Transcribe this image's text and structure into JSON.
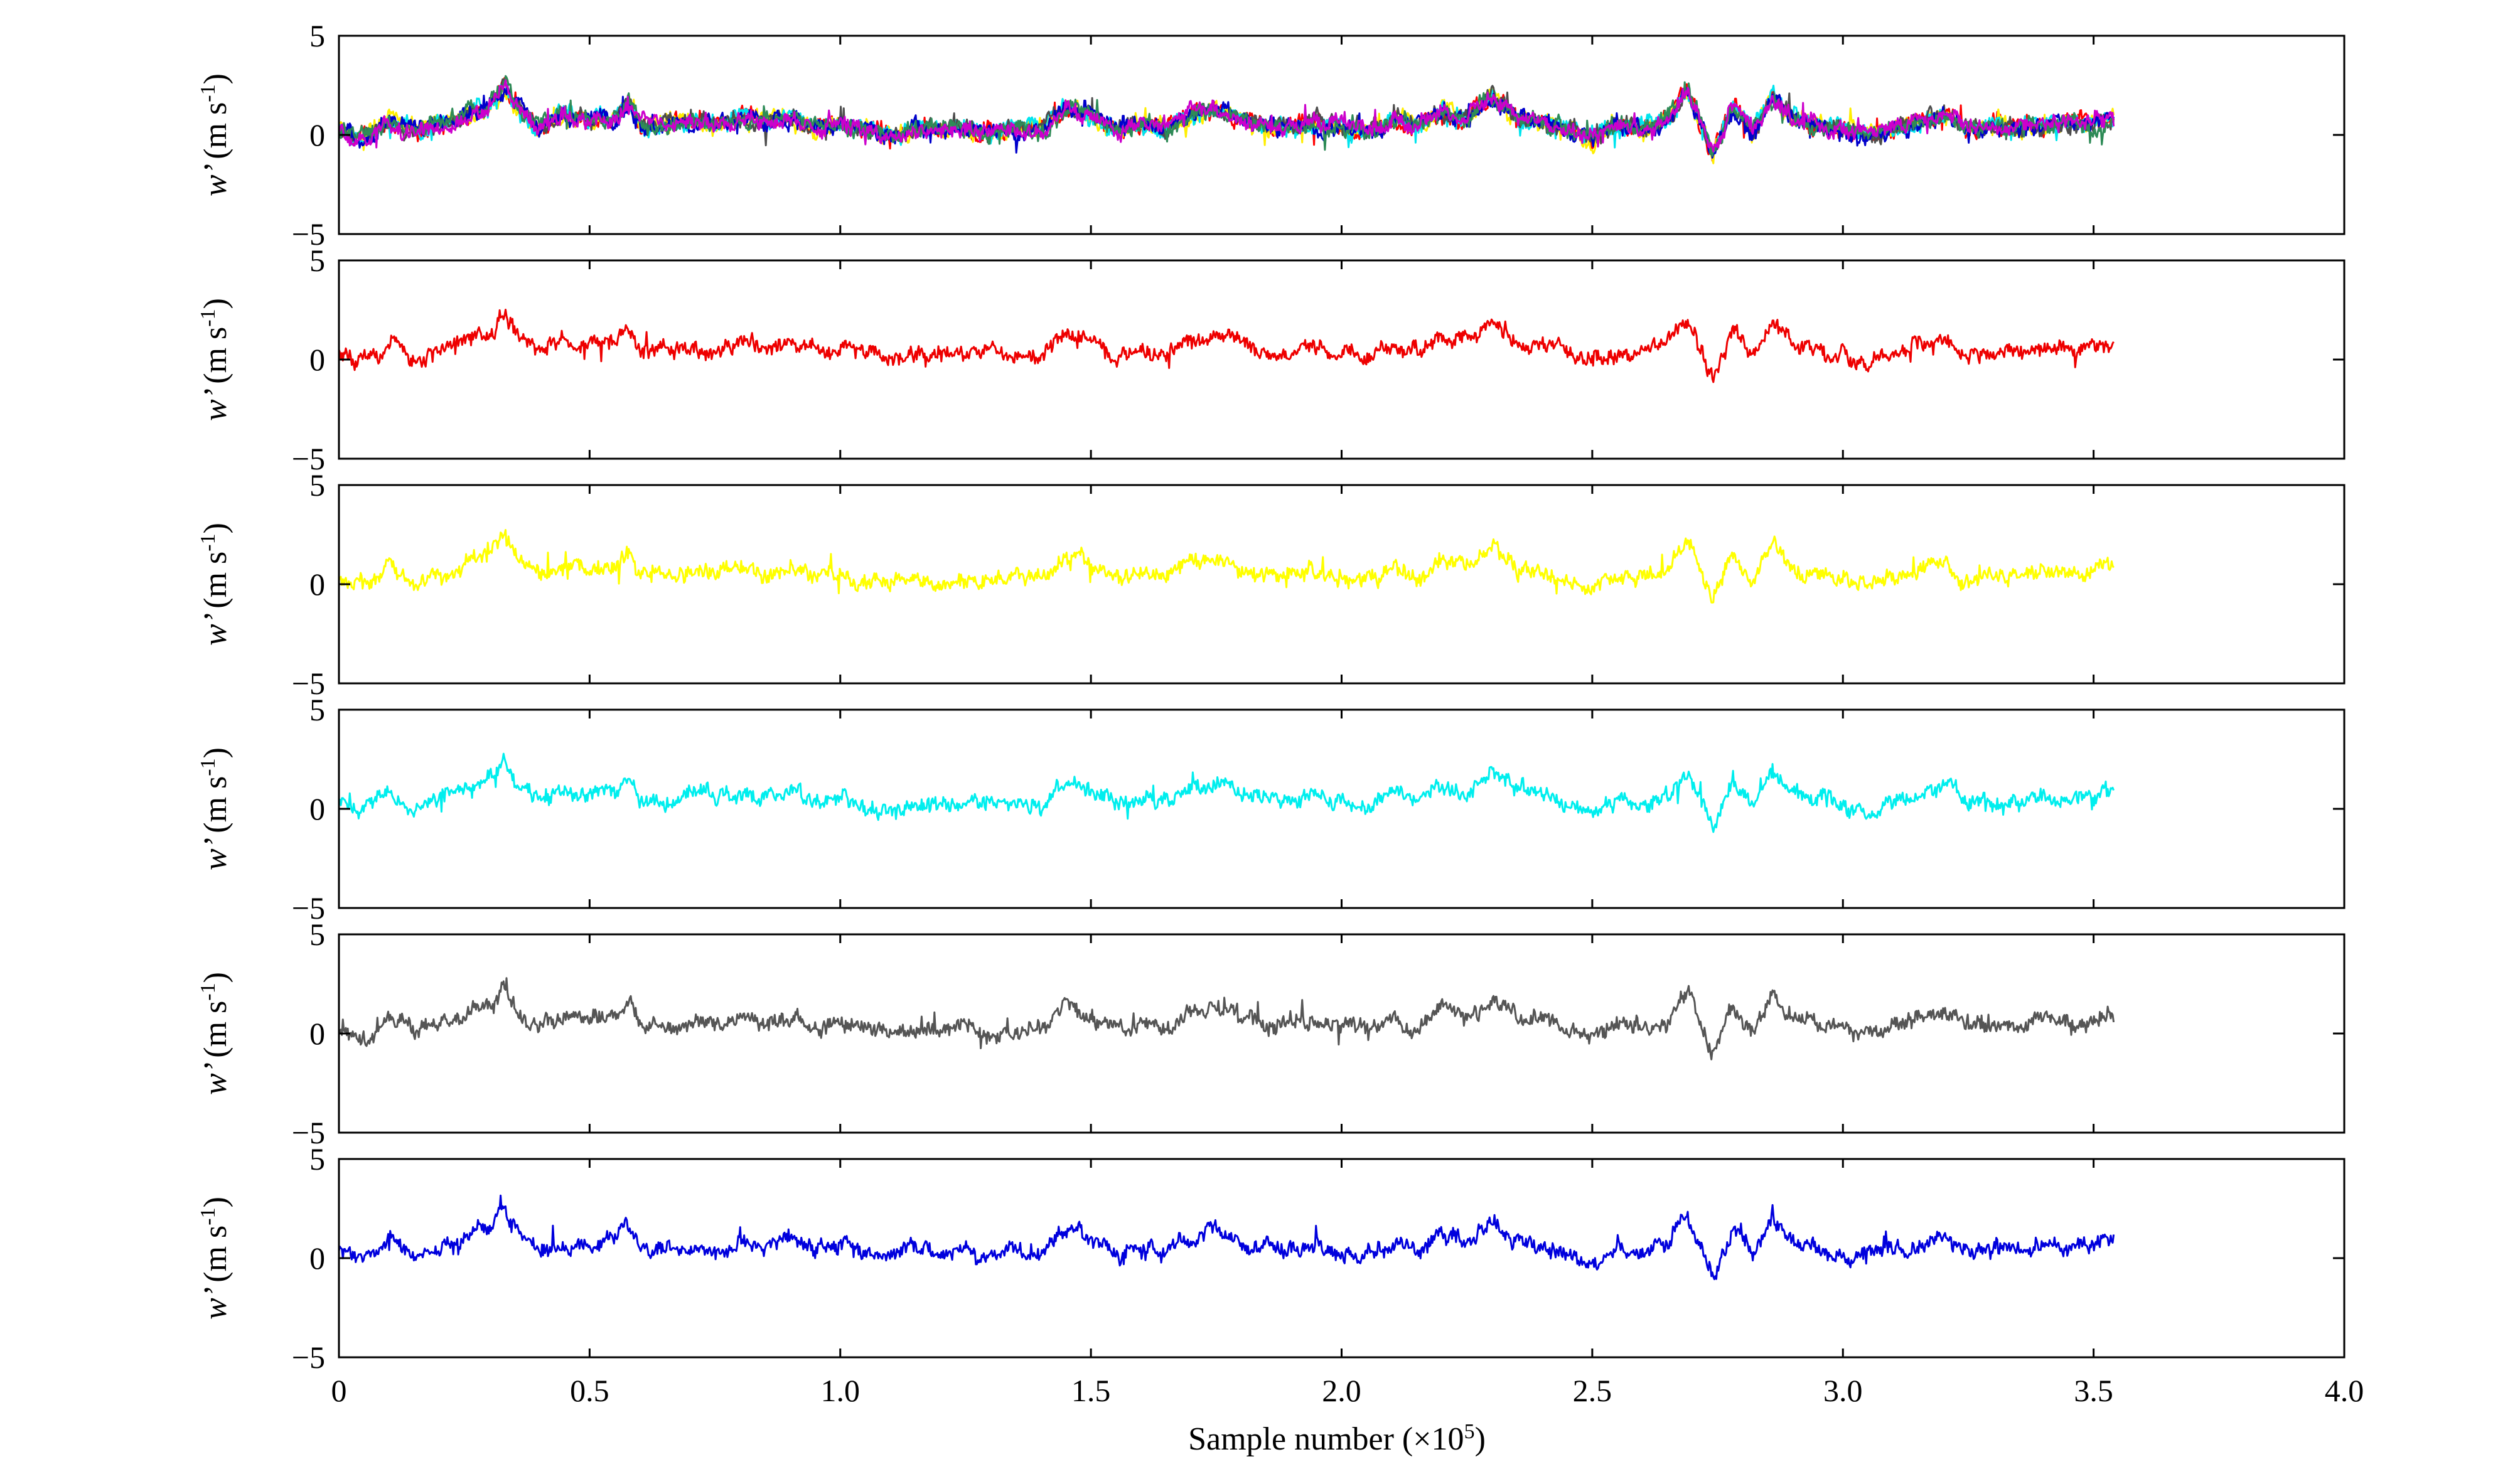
{
  "chart_data": {
    "type": "line",
    "xlabel": "Sample number (×10",
    "xlabel_sup": "5",
    "xlabel_end": ")",
    "xlim": [
      0,
      4.0
    ],
    "x_ticks": [
      "0",
      "0.5",
      "1.0",
      "1.5",
      "2.0",
      "2.5",
      "3.0",
      "3.5",
      "4.0"
    ],
    "x_tick_values": [
      0,
      0.5,
      1.0,
      1.5,
      2.0,
      2.5,
      3.0,
      3.5,
      4.0
    ],
    "data_x_range": [
      0,
      3.54
    ],
    "ylim": [
      -5,
      5
    ],
    "y_ticks": [
      "5",
      "0",
      "−5"
    ],
    "y_tick_values": [
      5,
      0,
      -5
    ],
    "ylabel_var": "w’",
    "ylabel_unit": "(m s",
    "ylabel_sup": "-1",
    "ylabel_end": ")",
    "grid": false,
    "panels": [
      {
        "series": [
          {
            "color": "#ff0000"
          },
          {
            "color": "#ffee00"
          },
          {
            "color": "#00e5ee"
          },
          {
            "color": "#4d4d4d"
          },
          {
            "color": "#0000cc"
          },
          {
            "color": "#2e8b57"
          },
          {
            "color": "#cc00cc"
          }
        ]
      },
      {
        "series": [
          {
            "color": "#ee0000"
          }
        ]
      },
      {
        "series": [
          {
            "color": "#ffff00"
          }
        ]
      },
      {
        "series": [
          {
            "color": "#00eeee"
          }
        ]
      },
      {
        "series": [
          {
            "color": "#555555"
          }
        ]
      },
      {
        "series": [
          {
            "color": "#0000dd"
          }
        ]
      }
    ],
    "trace_profile": {
      "x": [
        0,
        0.03,
        0.06,
        0.1,
        0.13,
        0.16,
        0.2,
        0.25,
        0.3,
        0.33,
        0.36,
        0.4,
        0.45,
        0.5,
        0.55,
        0.58,
        0.6,
        0.65,
        0.7,
        0.75,
        0.8,
        0.85,
        0.9,
        0.95,
        1.0,
        1.05,
        1.1,
        1.15,
        1.2,
        1.25,
        1.3,
        1.35,
        1.4,
        1.45,
        1.5,
        1.55,
        1.6,
        1.65,
        1.7,
        1.75,
        1.8,
        1.85,
        1.9,
        1.95,
        2.0,
        2.05,
        2.1,
        2.15,
        2.2,
        2.25,
        2.3,
        2.35,
        2.4,
        2.45,
        2.5,
        2.55,
        2.6,
        2.65,
        2.69,
        2.72,
        2.74,
        2.78,
        2.82,
        2.86,
        2.9,
        2.95,
        3.0,
        3.05,
        3.1,
        3.15,
        3.2,
        3.25,
        3.3,
        3.35,
        3.4,
        3.45,
        3.5,
        3.54
      ],
      "y": [
        0.2,
        -0.1,
        0.1,
        0.8,
        0.3,
        0.2,
        0.5,
        0.9,
        1.4,
        2.5,
        1.1,
        0.3,
        1.0,
        0.7,
        0.9,
        1.6,
        0.5,
        0.4,
        0.6,
        0.5,
        0.8,
        0.6,
        0.9,
        0.4,
        0.5,
        0.3,
        0.0,
        0.3,
        0.2,
        0.4,
        0.1,
        0.3,
        0.2,
        1.3,
        0.9,
        0.2,
        0.5,
        0.3,
        1.1,
        1.3,
        0.8,
        0.5,
        0.4,
        0.6,
        0.3,
        0.2,
        0.7,
        0.4,
        1.2,
        0.8,
        1.9,
        0.9,
        0.7,
        0.2,
        -0.2,
        0.5,
        0.3,
        0.6,
        2.2,
        0.3,
        -1.0,
        1.5,
        0.2,
        2.0,
        0.8,
        0.5,
        0.2,
        0.1,
        0.3,
        0.6,
        1.1,
        0.2,
        0.5,
        0.4,
        0.7,
        0.5,
        0.6,
        0.8
      ]
    }
  }
}
